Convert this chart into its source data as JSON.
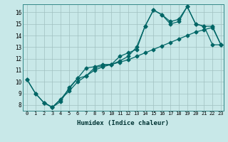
{
  "xlabel": "Humidex (Indice chaleur)",
  "bg_color": "#c8e8e8",
  "grid_color": "#a0c0c0",
  "line_color": "#006666",
  "xlim": [
    -0.5,
    23.3
  ],
  "ylim": [
    7.5,
    16.7
  ],
  "xticks": [
    0,
    1,
    2,
    3,
    4,
    5,
    6,
    7,
    8,
    9,
    10,
    11,
    12,
    13,
    14,
    15,
    16,
    17,
    18,
    19,
    20,
    21,
    22,
    23
  ],
  "yticks": [
    8,
    9,
    10,
    11,
    12,
    13,
    14,
    15,
    16
  ],
  "line1_x": [
    0,
    1,
    2,
    3,
    4,
    5,
    6,
    7,
    8,
    9,
    10,
    11,
    12,
    13,
    14,
    15,
    16,
    17,
    18,
    19,
    20,
    21,
    22,
    23
  ],
  "line1_y": [
    10.2,
    9.0,
    8.2,
    7.8,
    8.5,
    9.4,
    10.3,
    10.5,
    11.2,
    11.4,
    11.5,
    12.2,
    12.5,
    12.8,
    14.8,
    16.2,
    15.8,
    15.2,
    15.4,
    16.5,
    15.0,
    14.8,
    13.2,
    13.2
  ],
  "line2_x": [
    0,
    1,
    2,
    3,
    4,
    5,
    6,
    7,
    8,
    9,
    10,
    11,
    12,
    13,
    14,
    15,
    16,
    17,
    18,
    19,
    20,
    21,
    22,
    23
  ],
  "line2_y": [
    10.2,
    9.0,
    8.2,
    7.8,
    8.3,
    9.5,
    10.3,
    11.2,
    11.3,
    11.5,
    11.5,
    11.8,
    12.2,
    13.0,
    14.8,
    16.2,
    15.8,
    15.0,
    15.2,
    16.5,
    15.0,
    14.8,
    14.8,
    13.2
  ],
  "line3_x": [
    2,
    3,
    5,
    6,
    7,
    8,
    9,
    10,
    11,
    12,
    13,
    14,
    15,
    16,
    17,
    18,
    19,
    20,
    21,
    22,
    23
  ],
  "line3_y": [
    8.2,
    7.8,
    9.2,
    10.0,
    10.5,
    11.0,
    11.3,
    11.5,
    11.7,
    11.9,
    12.2,
    12.5,
    12.8,
    13.1,
    13.4,
    13.7,
    14.0,
    14.3,
    14.5,
    14.7,
    13.2
  ]
}
